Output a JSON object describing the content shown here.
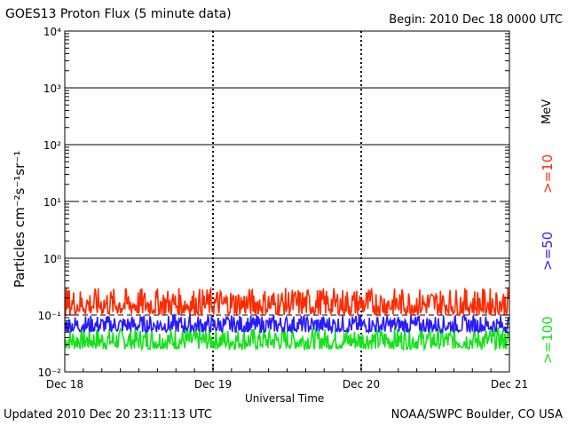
{
  "header": {
    "title": "GOES13 Proton Flux (5 minute data)",
    "begin": "Begin: 2010 Dec 18 0000 UTC"
  },
  "footer": {
    "updated": "Updated 2010 Dec 20 23:11:13 UTC",
    "credit": "NOAA/SWPC Boulder, CO USA"
  },
  "chart_data": {
    "type": "line",
    "title": "GOES13 Proton Flux (5 minute data)",
    "xlabel": "Universal Time",
    "ylabel": "Particles cm⁻²s⁻¹sr⁻¹",
    "y_scale": "log",
    "ylim": [
      0.01,
      10000
    ],
    "y_ticks": [
      "10⁻²",
      "10⁻¹",
      "10⁰",
      "10¹",
      "10²",
      "10³",
      "10⁴"
    ],
    "x_ticks": [
      "Dec 18",
      "Dec 19",
      "Dec 20",
      "Dec 21"
    ],
    "legend_unit": "MeV",
    "series": [
      {
        "name": ">=10",
        "color": "#ff2a00",
        "typical_range": [
          0.1,
          0.3
        ]
      },
      {
        "name": ">=50",
        "color": "#2a1bff",
        "typical_range": [
          0.05,
          0.1
        ]
      },
      {
        "name": ">=100",
        "color": "#16e21b",
        "typical_range": [
          0.025,
          0.06
        ]
      }
    ],
    "grid": "horizontal at 10^0, 10^1 (dashed), 10^2, 10^3; dashed at 10^-1"
  }
}
